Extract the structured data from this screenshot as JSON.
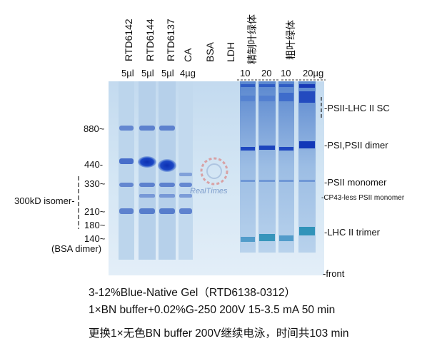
{
  "lane_labels": {
    "rtd6142": "RTD6142",
    "rtd6144": "RTD6144",
    "rtd6137": "RTD6137",
    "ca": "CA",
    "bsa": "BSA",
    "ldh": "LDH",
    "refined": "精制叶绿体",
    "crude": "粗叶绿体"
  },
  "volumes": {
    "v1": "5µl",
    "v2": "5µl",
    "v3": "5µl",
    "v4": "4µg",
    "r10": "10",
    "r20": "20",
    "c10": "10",
    "c20": "20µg"
  },
  "mw_markers": {
    "m880": "880~",
    "m440": "440-",
    "m330": "330~",
    "m210": "210~",
    "m180": "180~",
    "m140": "140~",
    "bsa_dimer": "(BSA dimer)",
    "isomer": "300kD isomer-"
  },
  "band_labels": {
    "psii_lhc": "-PSII-LHC II SC",
    "psi_dimer": "-PSI,PSII dimer",
    "psii_mono": "-PSII monomer",
    "cp43": "-CP43-less PSII monomer",
    "lhc_trimer": "-LHC II trimer",
    "front": "-front"
  },
  "captions": {
    "line1": "3-12%Blue-Native Gel（RTD6138-0312）",
    "line2": "1×BN buffer+0.02%G-250 200V 15-3.5 mA 50 min",
    "line3": "更换1×无色BN buffer 200V继续电泳，时间共103 min"
  },
  "watermark": "RealTimes",
  "colors": {
    "gel_light": "#cfe3f3",
    "gel_mid": "#b9d4ec",
    "band_blue": "#2f63c8",
    "band_dark": "#1238b8",
    "lhc_teal": "#2a8fb6"
  }
}
